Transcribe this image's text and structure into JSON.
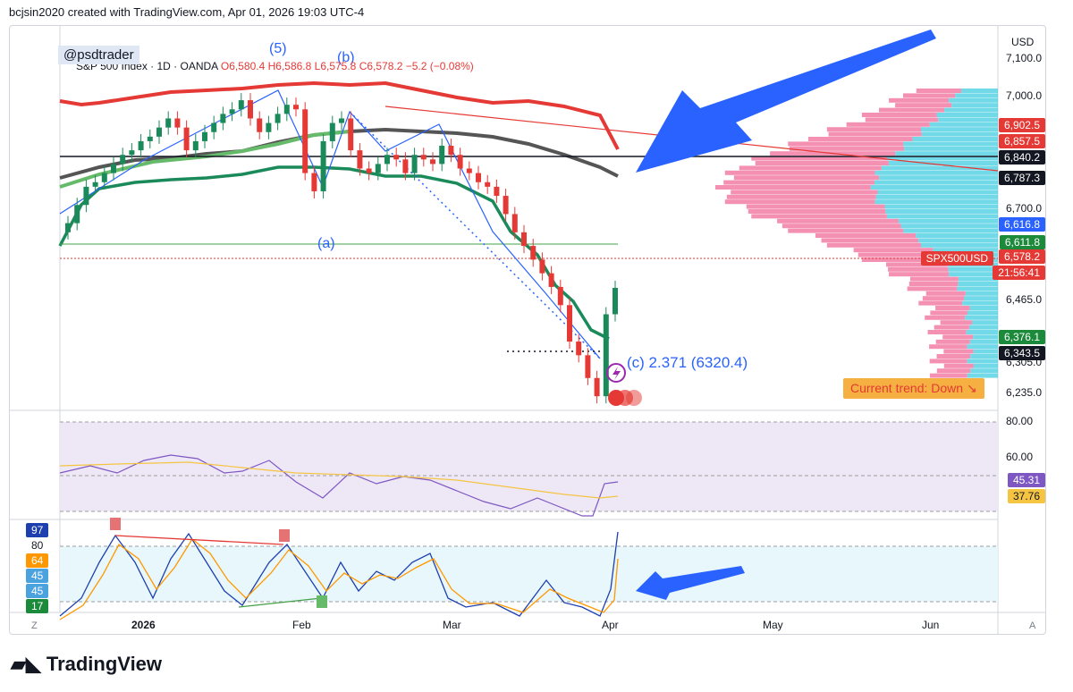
{
  "header": {
    "text": "bcjsin2020 created with TradingView.com, Apr 01, 2026 19:03 UTC-4"
  },
  "legend": {
    "symbol": "S&P 500 Index · 1D · OANDA",
    "open": "O6,580.4",
    "high": "H6,586.8",
    "low": "L6,575.8",
    "close": "C6,578.2",
    "change": "−5.2 (−0.08%)"
  },
  "handle": "@psdtrader",
  "currency": "USD",
  "trend_label": "Current trend: Down ↘",
  "wave_labels": {
    "w5": "(5)",
    "wb": "(b)",
    "wa": "(a)",
    "wc": "(c) 2.371 (6320.4)"
  },
  "price_tags": [
    {
      "label": "6,902.5",
      "color": "#e53935"
    },
    {
      "label": "6,857.5",
      "color": "#e53935"
    },
    {
      "label": "6,840.2",
      "color": "#131722"
    },
    {
      "label": "6,787.3",
      "color": "#131722"
    },
    {
      "label": "6,616.8",
      "color": "#2962ff"
    },
    {
      "label": "6,611.8",
      "color": "#1b8a3a"
    },
    {
      "label": "6,578.2",
      "color": "#e53935"
    },
    {
      "label": "SPX500USD",
      "color": "#e53935"
    },
    {
      "label": "21:56:41",
      "color": "#e53935"
    },
    {
      "label": "6,376.1",
      "color": "#1b8a3a"
    },
    {
      "label": "6,343.5",
      "color": "#131722"
    }
  ],
  "price_axis": [
    "7,100.0",
    "7,000.0",
    "6,700.0",
    "6,465.0",
    "6,305.0",
    "6,235.0"
  ],
  "rsi_axis": [
    "80.00",
    "60.00"
  ],
  "rsi_tags": [
    {
      "label": "45.31",
      "color": "#7e57c2"
    },
    {
      "label": "37.76",
      "color": "#f5c542"
    }
  ],
  "stoch_tags": [
    {
      "label": "97",
      "color": "#1e40af"
    },
    {
      "label": "80",
      "color": "none"
    },
    {
      "label": "64",
      "color": "#ff9800"
    },
    {
      "label": "45",
      "color": "#4aa3df"
    },
    {
      "label": "45",
      "color": "#4aa3df"
    },
    {
      "label": "17",
      "color": "#1b8a3a"
    }
  ],
  "time_axis": [
    "2026",
    "Feb",
    "Mar",
    "Apr",
    "May",
    "Jun"
  ],
  "corners": {
    "left": "Z",
    "right": "A"
  },
  "brand": "TradingView",
  "chart_data": {
    "type": "candlestick",
    "symbol": "S&P 500 Index",
    "interval": "1D",
    "closes": [
      6720,
      6760,
      6800,
      6810,
      6830,
      6850,
      6870,
      6880,
      6900,
      6910,
      6930,
      6950,
      6930,
      6880,
      6900,
      6920,
      6940,
      6960,
      6970,
      6990,
      6950,
      6920,
      6940,
      6960,
      6980,
      6970,
      6830,
      6790,
      6900,
      6940,
      6950,
      6880,
      6840,
      6830,
      6850,
      6870,
      6860,
      6830,
      6870,
      6860,
      6850,
      6890,
      6870,
      6840,
      6830,
      6810,
      6800,
      6780,
      6740,
      6700,
      6670,
      6640,
      6610,
      6580,
      6540,
      6460,
      6430,
      6380,
      6340,
      6520,
      6578
    ],
    "current_price": 6578.2,
    "fib_target": 6320.4,
    "rsi": {
      "value": 45.31,
      "signal": 37.76,
      "levels": [
        80,
        60
      ]
    },
    "stoch": {
      "k": 97,
      "d": 64
    }
  }
}
